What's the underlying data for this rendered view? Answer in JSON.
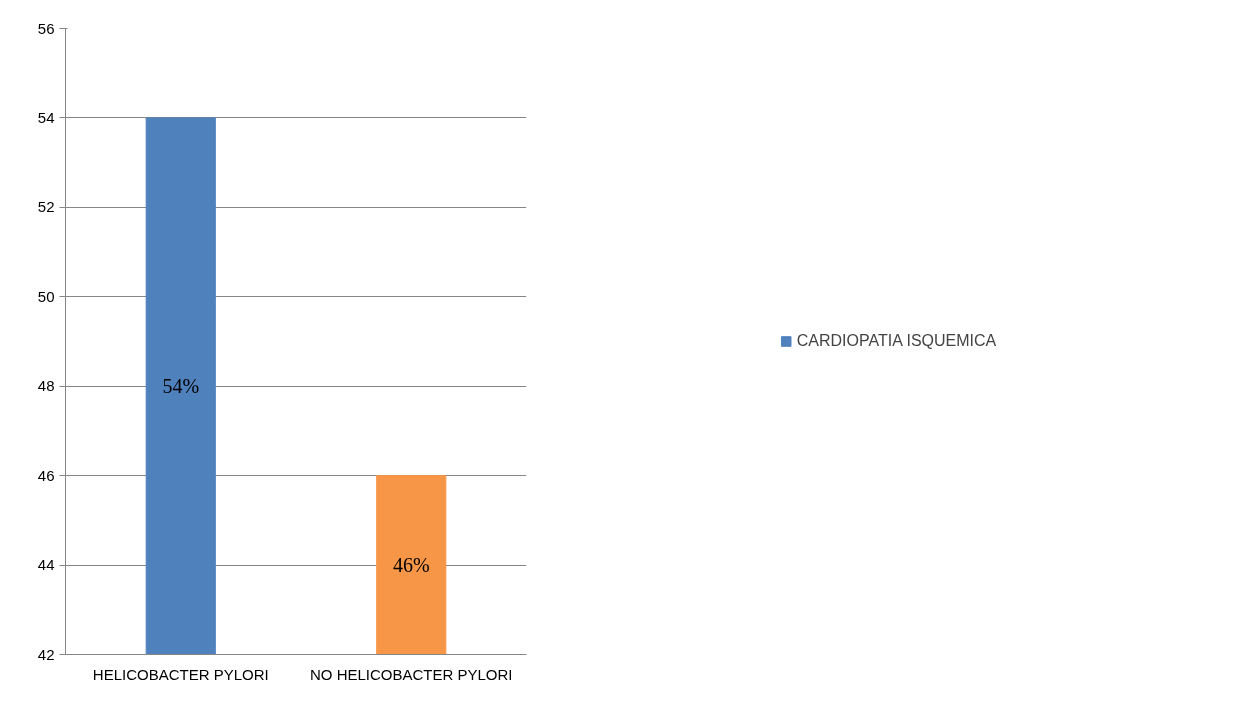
{
  "chart_data": {
    "type": "bar",
    "categories": [
      "HELICOBACTER PYLORI",
      "NO HELICOBACTER PYLORI"
    ],
    "series": [
      {
        "name": "CARDIOPATIA ISQUEMICA",
        "colors": [
          "#4f81bd",
          "#f79646"
        ],
        "values": [
          54,
          46
        ],
        "value_labels": [
          "54%",
          "46%"
        ]
      }
    ],
    "ylim": [
      42,
      56
    ],
    "yticks": [
      42,
      44,
      46,
      48,
      50,
      52,
      54,
      56
    ],
    "grid": "y",
    "legend": "right"
  }
}
